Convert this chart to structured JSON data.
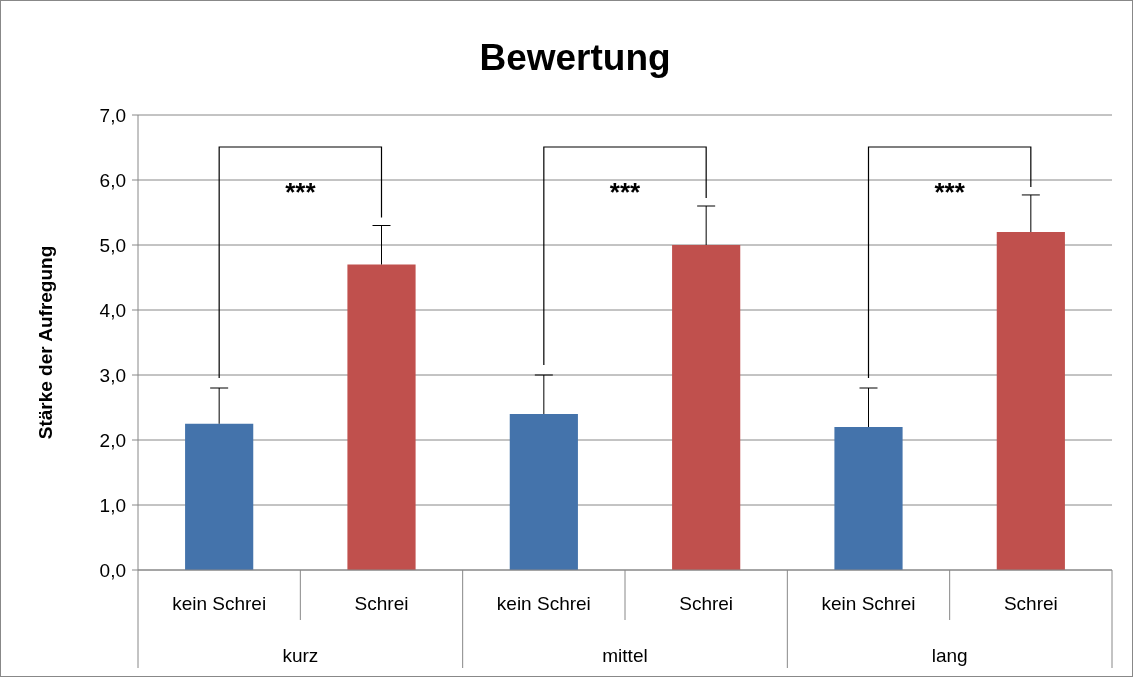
{
  "chart_data": {
    "type": "bar",
    "title": "Bewertung",
    "ylabel": "Stärke der Aufregung",
    "categories": [
      "kein Schrei",
      "Schrei",
      "kein Schrei",
      "Schrei",
      "kein Schrei",
      "Schrei"
    ],
    "values": [
      2.25,
      4.7,
      2.4,
      5.0,
      2.2,
      5.2
    ],
    "colors": [
      "#4473ab",
      "#c0504d",
      "#4473ab",
      "#c0504d",
      "#4473ab",
      "#c0504d"
    ],
    "errors": [
      [
        2.25,
        2.8
      ],
      [
        4.7,
        5.3
      ],
      [
        2.4,
        3.0
      ],
      [
        5.0,
        5.6
      ],
      [
        2.2,
        2.8
      ],
      [
        5.2,
        5.77
      ]
    ],
    "ylim": [
      0,
      7
    ],
    "yticks": [
      {
        "value": 0,
        "label": "0,0"
      },
      {
        "value": 1,
        "label": "1,0"
      },
      {
        "value": 2,
        "label": "2,0"
      },
      {
        "value": 3,
        "label": "3,0"
      },
      {
        "value": 4,
        "label": "4,0"
      },
      {
        "value": 5,
        "label": "5,0"
      },
      {
        "value": 6,
        "label": "6,0"
      },
      {
        "value": 7,
        "label": "7,0"
      }
    ],
    "grid": "y",
    "annotations": [
      "***",
      "***",
      "***",
      "kurz",
      "mittel",
      "lang"
    ]
  }
}
